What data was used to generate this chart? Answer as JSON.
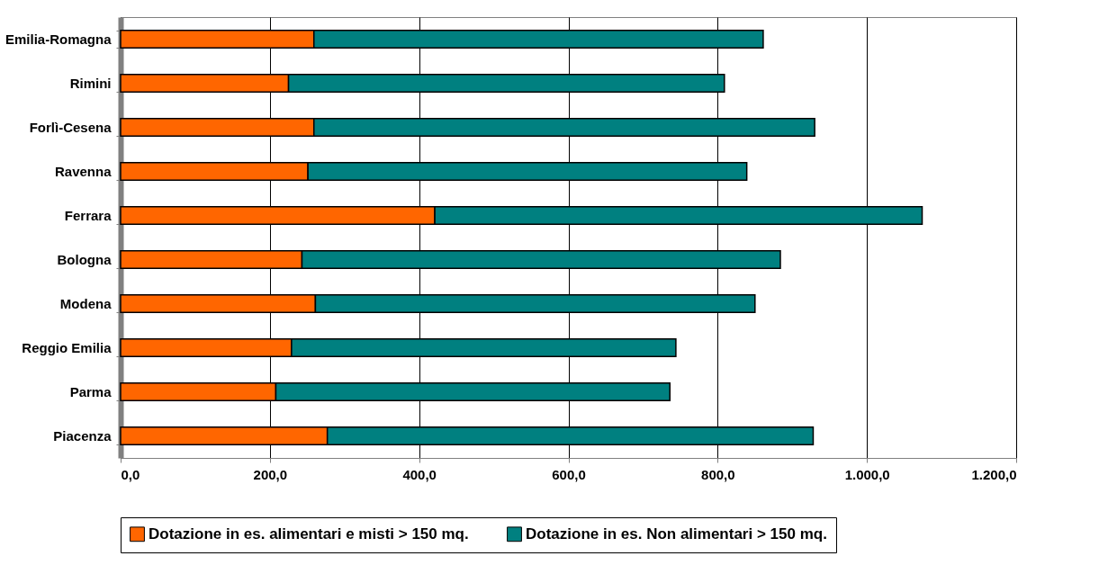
{
  "chart_data": {
    "type": "bar",
    "orientation": "horizontal",
    "stacked": true,
    "categories": [
      "Emilia-Romagna",
      "Rimini",
      "Forlì-Cesena",
      "Ravenna",
      "Ferrara",
      "Bologna",
      "Modena",
      "Reggio Emilia",
      "Parma",
      "Piacenza"
    ],
    "series": [
      {
        "name": "Dotazione in es. alimentari e misti > 150 mq.",
        "color": "#ff6600",
        "values": [
          259,
          225,
          259,
          251,
          421,
          243,
          261,
          229,
          208,
          277
        ]
      },
      {
        "name": "Dotazione in es. Non alimentari > 150 mq.",
        "color": "#008080",
        "values": [
          602,
          584,
          671,
          588,
          653,
          641,
          589,
          515,
          528,
          651
        ]
      }
    ],
    "xlim": [
      0,
      1200
    ],
    "xticks": [
      {
        "value": 0,
        "label": "0,0"
      },
      {
        "value": 200,
        "label": "200,0"
      },
      {
        "value": 400,
        "label": "400,0"
      },
      {
        "value": 600,
        "label": "600,0"
      },
      {
        "value": 800,
        "label": "800,0"
      },
      {
        "value": 1000,
        "label": "1.000,0"
      },
      {
        "value": 1200,
        "label": "1.200,0"
      }
    ],
    "grid": "x",
    "legend": "bottom"
  }
}
